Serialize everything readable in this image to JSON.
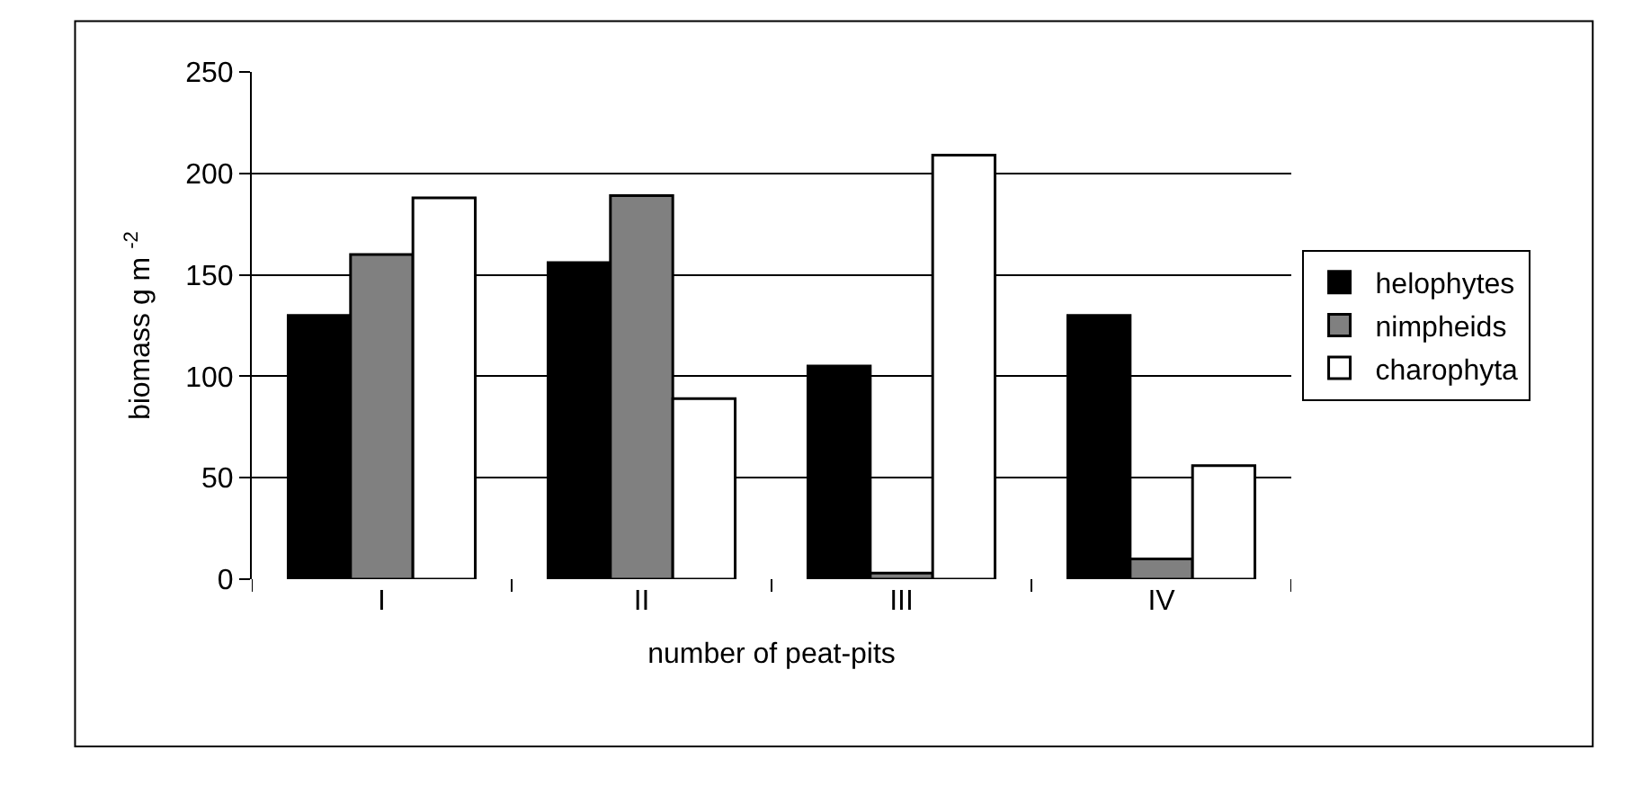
{
  "chart_data": {
    "type": "bar",
    "xlabel": "number of peat-pits",
    "ylabel": "biomass g m $^{-2}$",
    "categories": [
      "I",
      "II",
      "III",
      "IV"
    ],
    "series": [
      {
        "name": "helophytes",
        "color": "#000000",
        "values": [
          130,
          156,
          105,
          130
        ]
      },
      {
        "name": "nimpheids",
        "color": "#808080",
        "values": [
          160,
          189,
          3,
          10
        ]
      },
      {
        "name": "charophyta",
        "color": "#ffffff",
        "values": [
          188,
          89,
          209,
          56
        ]
      }
    ],
    "ylim": [
      0,
      250
    ],
    "yticks": [
      0,
      50,
      100,
      150,
      200,
      250
    ],
    "grid": "y",
    "legend": "right"
  }
}
